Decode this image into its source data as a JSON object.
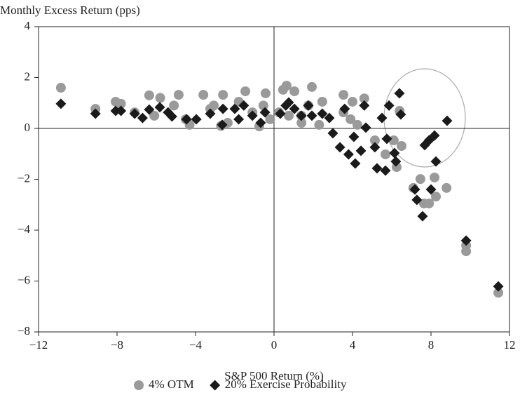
{
  "chart_data": {
    "type": "scatter",
    "title": "Monthly Excess Return (pps)",
    "x_label": "S&P 500 Return (%)",
    "xlim": [
      -12,
      12
    ],
    "ylim": [
      -8,
      4
    ],
    "xticks": [
      {
        "value": -12,
        "label": "−12"
      },
      {
        "value": -8,
        "label": "−8"
      },
      {
        "value": -4,
        "label": "−4"
      },
      0,
      4,
      8,
      12
    ],
    "yticks": [
      4,
      2,
      0,
      {
        "value": -2,
        "label": "−2"
      },
      {
        "value": -4,
        "label": "−4"
      },
      {
        "value": -6,
        "label": "−6"
      },
      {
        "value": -8,
        "label": "−8"
      }
    ],
    "legend": "bottom",
    "series": [
      {
        "name": "4% OTM",
        "color": "#9a9a9a",
        "marker": "circle",
        "x": [
          -10.86,
          -9.1,
          -8.07,
          -7.8,
          -7.1,
          -6.36,
          -5.8,
          -4.86,
          -6.1,
          -5.1,
          -4.5,
          -4.3,
          -3.6,
          -3.25,
          -2.6,
          -3.07,
          -2.36,
          -2.7,
          -1.8,
          -1.46,
          -1.1,
          -0.75,
          -0.43,
          -0.54,
          -0.2,
          0.46,
          0.64,
          1.04,
          0.75,
          1.4,
          1.93,
          1.75,
          2.46,
          2.3,
          3.54,
          4.0,
          4.6,
          3.9,
          4.25,
          5.14,
          5.68,
          6.1,
          6.25,
          6.4,
          6.5,
          7.1,
          7.46,
          7.64,
          7.9,
          8.18,
          8.25,
          8.79,
          9.79,
          9.79,
          11.43,
          0.25,
          3.54,
          1.39
        ],
        "values": [
          1.6,
          0.77,
          1.05,
          0.97,
          0.63,
          1.3,
          1.2,
          1.32,
          0.5,
          0.9,
          0.36,
          0.14,
          1.32,
          0.77,
          1.32,
          0.9,
          0.22,
          0.1,
          1.05,
          1.46,
          0.63,
          0.08,
          1.38,
          0.9,
          0.36,
          1.52,
          1.68,
          1.46,
          0.5,
          0.22,
          1.63,
          0.9,
          1.05,
          0.14,
          1.32,
          1.05,
          1.18,
          0.36,
          0.14,
          -0.47,
          -1.02,
          -0.47,
          -1.52,
          0.69,
          -0.69,
          -2.34,
          -1.99,
          -2.95,
          -2.95,
          -1.93,
          -2.68,
          -2.34,
          -4.6,
          -4.83,
          -6.46,
          0.63,
          0.63,
          0.5
        ]
      },
      {
        "name": "20% Exercise Probability",
        "color": "#1a1a1a",
        "marker": "diamond",
        "x": [
          -10.86,
          -9.1,
          -8.07,
          -7.8,
          -7.1,
          -6.7,
          -6.36,
          -5.82,
          -5.4,
          -5.2,
          -4.46,
          -3.96,
          -3.25,
          -2.6,
          -2.64,
          -2.0,
          -1.8,
          -1.54,
          -1.1,
          -0.68,
          -0.46,
          0.32,
          0.6,
          0.75,
          1.04,
          1.39,
          1.75,
          1.93,
          2.46,
          2.82,
          3.0,
          3.36,
          3.6,
          3.8,
          4.07,
          4.14,
          4.43,
          4.6,
          4.68,
          5.14,
          5.25,
          5.5,
          5.68,
          5.86,
          5.75,
          6.14,
          6.21,
          6.39,
          6.46,
          7.18,
          7.28,
          7.57,
          7.68,
          7.9,
          8.0,
          8.18,
          8.25,
          8.82,
          9.79,
          11.43
        ],
        "values": [
          0.97,
          0.58,
          0.69,
          0.69,
          0.58,
          0.41,
          0.74,
          0.83,
          0.63,
          0.47,
          0.36,
          0.36,
          0.58,
          0.77,
          0.14,
          0.77,
          0.36,
          0.9,
          0.5,
          0.22,
          0.63,
          0.58,
          0.9,
          1.02,
          0.77,
          0.5,
          0.9,
          0.5,
          0.58,
          0.41,
          -0.19,
          -0.74,
          0.77,
          -1.02,
          -0.33,
          -1.38,
          -0.88,
          0.9,
          0.03,
          -0.74,
          -1.57,
          0.41,
          -1.66,
          0.9,
          -0.41,
          -0.97,
          -1.3,
          1.38,
          0.55,
          -2.4,
          -2.81,
          -3.45,
          -0.66,
          -0.47,
          -2.4,
          -0.28,
          -1.3,
          0.3,
          -4.41,
          -6.21
        ]
      }
    ]
  }
}
